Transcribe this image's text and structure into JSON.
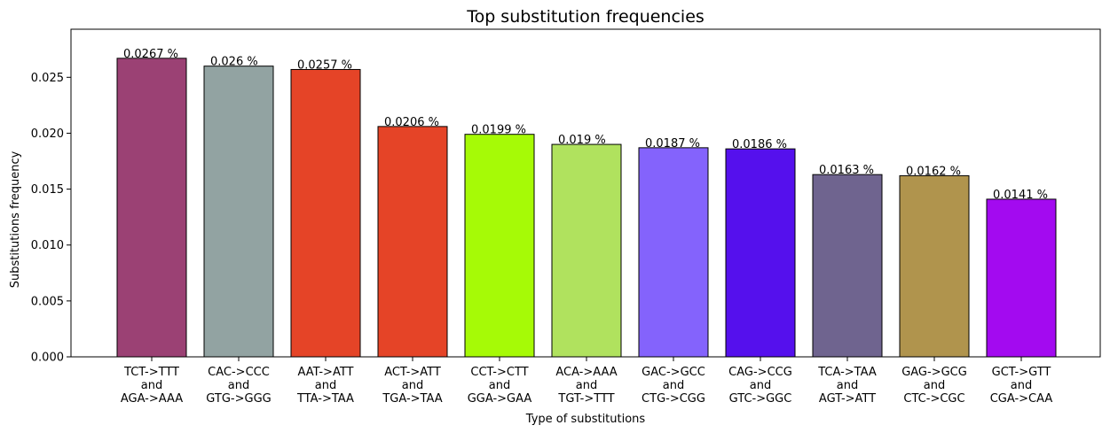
{
  "chart_data": {
    "type": "bar",
    "title": "Top substitution frequencies",
    "xlabel": "Type of substitutions",
    "ylabel": "Substitutions frequency",
    "ylim": [
      0,
      0.0293
    ],
    "yticks": [
      "0.000",
      "0.005",
      "0.010",
      "0.015",
      "0.020",
      "0.025"
    ],
    "ytick_values": [
      0,
      0.005,
      0.01,
      0.015,
      0.02,
      0.025
    ],
    "grid": false,
    "categories": [
      [
        "TCT->TTT",
        "and",
        "AGA->AAA"
      ],
      [
        "CAC->CCC",
        "and",
        "GTG->GGG"
      ],
      [
        "AAT->ATT",
        "and",
        "TTA->TAA"
      ],
      [
        "ACT->ATT",
        "and",
        "TGA->TAA"
      ],
      [
        "CCT->CTT",
        "and",
        "GGA->GAA"
      ],
      [
        "ACA->AAA",
        "and",
        "TGT->TTT"
      ],
      [
        "GAC->GCC",
        "and",
        "CTG->CGG"
      ],
      [
        "CAG->CCG",
        "and",
        "GTC->GGC"
      ],
      [
        "TCA->TAA",
        "and",
        "AGT->ATT"
      ],
      [
        "GAG->GCG",
        "and",
        "CTC->CGC"
      ],
      [
        "GCT->GTT",
        "and",
        "CGA->CAA"
      ]
    ],
    "values": [
      0.0267,
      0.026,
      0.0257,
      0.0206,
      0.0199,
      0.019,
      0.0187,
      0.0186,
      0.0163,
      0.0162,
      0.0141
    ],
    "labels": [
      "0.0267 %",
      "0.026 %",
      "0.0257 %",
      "0.0206 %",
      "0.0199 %",
      "0.019 %",
      "0.0187 %",
      "0.0186 %",
      "0.0163 %",
      "0.0162 %",
      "0.0141 %"
    ],
    "colors": [
      "#9b4174",
      "#92a3a2",
      "#e54427",
      "#e54427",
      "#a6fa06",
      "#b0e25e",
      "#8463fc",
      "#5510ed",
      "#6f648f",
      "#b0944d",
      "#a30af0"
    ],
    "edge_color": "#000000"
  }
}
